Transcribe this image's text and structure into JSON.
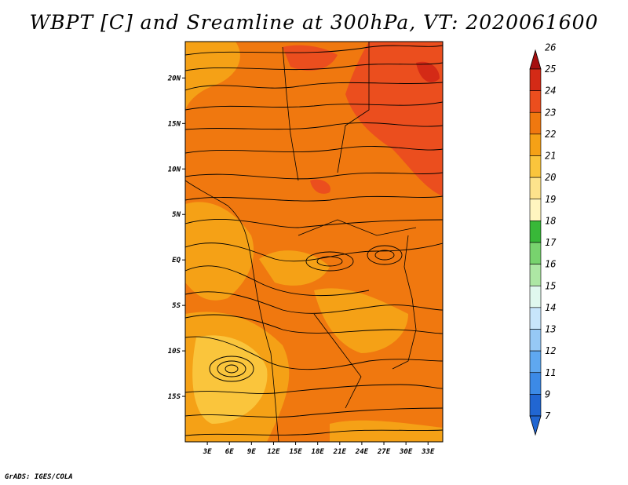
{
  "title": "WBPT [C] and Sreamline at 300hPa, VT: 2020061600",
  "credit": "GrADS: IGES/COLA",
  "map": {
    "lon_range": [
      0,
      35
    ],
    "lat_range": [
      -20,
      24
    ],
    "lon_ticks": [
      {
        "value": 3,
        "label": "3E"
      },
      {
        "value": 6,
        "label": "6E"
      },
      {
        "value": 9,
        "label": "9E"
      },
      {
        "value": 12,
        "label": "12E"
      },
      {
        "value": 15,
        "label": "15E"
      },
      {
        "value": 18,
        "label": "18E"
      },
      {
        "value": 21,
        "label": "21E"
      },
      {
        "value": 24,
        "label": "24E"
      },
      {
        "value": 27,
        "label": "27E"
      },
      {
        "value": 30,
        "label": "30E"
      },
      {
        "value": 33,
        "label": "33E"
      }
    ],
    "lat_ticks": [
      {
        "value": 20,
        "label": "20N"
      },
      {
        "value": 15,
        "label": "15N"
      },
      {
        "value": 10,
        "label": "10N"
      },
      {
        "value": 5,
        "label": "5N"
      },
      {
        "value": 0,
        "label": "EQ"
      },
      {
        "value": -5,
        "label": "5S"
      },
      {
        "value": -10,
        "label": "10S"
      },
      {
        "value": -15,
        "label": "15S"
      }
    ],
    "field_description_colors": {
      "dominant": "#f0780f",
      "secondary": "#f5a116",
      "warm": "#eb4e1e"
    }
  },
  "colorbar": {
    "levels": [
      "26",
      "25",
      "24",
      "23",
      "22",
      "21",
      "20",
      "19",
      "18",
      "17",
      "16",
      "15",
      "14",
      "13",
      "12",
      "11",
      "9",
      "7"
    ],
    "colors": [
      "#a50f0f",
      "#d42a16",
      "#eb4e1e",
      "#f0780f",
      "#f5a116",
      "#fac53c",
      "#fde38c",
      "#fff5bf",
      "#38b838",
      "#78d36e",
      "#ade7a4",
      "#e0f8ee",
      "#c7e5fb",
      "#96c9f5",
      "#5fa8f0",
      "#3c8ae6",
      "#2166d2",
      "#2166d2"
    ]
  }
}
